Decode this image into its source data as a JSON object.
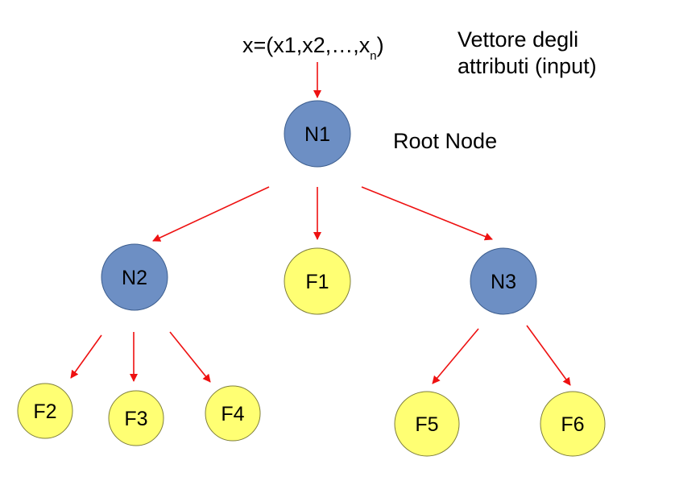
{
  "input": {
    "text_main": "x=(x1,x2,…,x",
    "subscript": "n",
    "text_end": ")"
  },
  "annotations": {
    "vector_line1": "Vettore degli",
    "vector_line2": "attributi (input)",
    "root_label": "Root Node"
  },
  "colors": {
    "internal_fill": "#6d8fc4",
    "internal_stroke": "#3e5f8f",
    "leaf_fill": "#ffff73",
    "leaf_stroke": "#7f7f3a",
    "arrow": "#ee1111"
  },
  "nodes": [
    {
      "id": "N1",
      "label": "N1",
      "kind": "internal"
    },
    {
      "id": "N2",
      "label": "N2",
      "kind": "internal"
    },
    {
      "id": "F1",
      "label": "F1",
      "kind": "leaf"
    },
    {
      "id": "N3",
      "label": "N3",
      "kind": "internal"
    },
    {
      "id": "F2",
      "label": "F2",
      "kind": "leaf"
    },
    {
      "id": "F3",
      "label": "F3",
      "kind": "leaf"
    },
    {
      "id": "F4",
      "label": "F4",
      "kind": "leaf"
    },
    {
      "id": "F5",
      "label": "F5",
      "kind": "leaf"
    },
    {
      "id": "F6",
      "label": "F6",
      "kind": "leaf"
    }
  ],
  "edges": [
    {
      "from": "input",
      "to": "N1"
    },
    {
      "from": "N1",
      "to": "N2"
    },
    {
      "from": "N1",
      "to": "F1"
    },
    {
      "from": "N1",
      "to": "N3"
    },
    {
      "from": "N2",
      "to": "F2"
    },
    {
      "from": "N2",
      "to": "F3"
    },
    {
      "from": "N2",
      "to": "F4"
    },
    {
      "from": "N3",
      "to": "F5"
    },
    {
      "from": "N3",
      "to": "F6"
    }
  ]
}
